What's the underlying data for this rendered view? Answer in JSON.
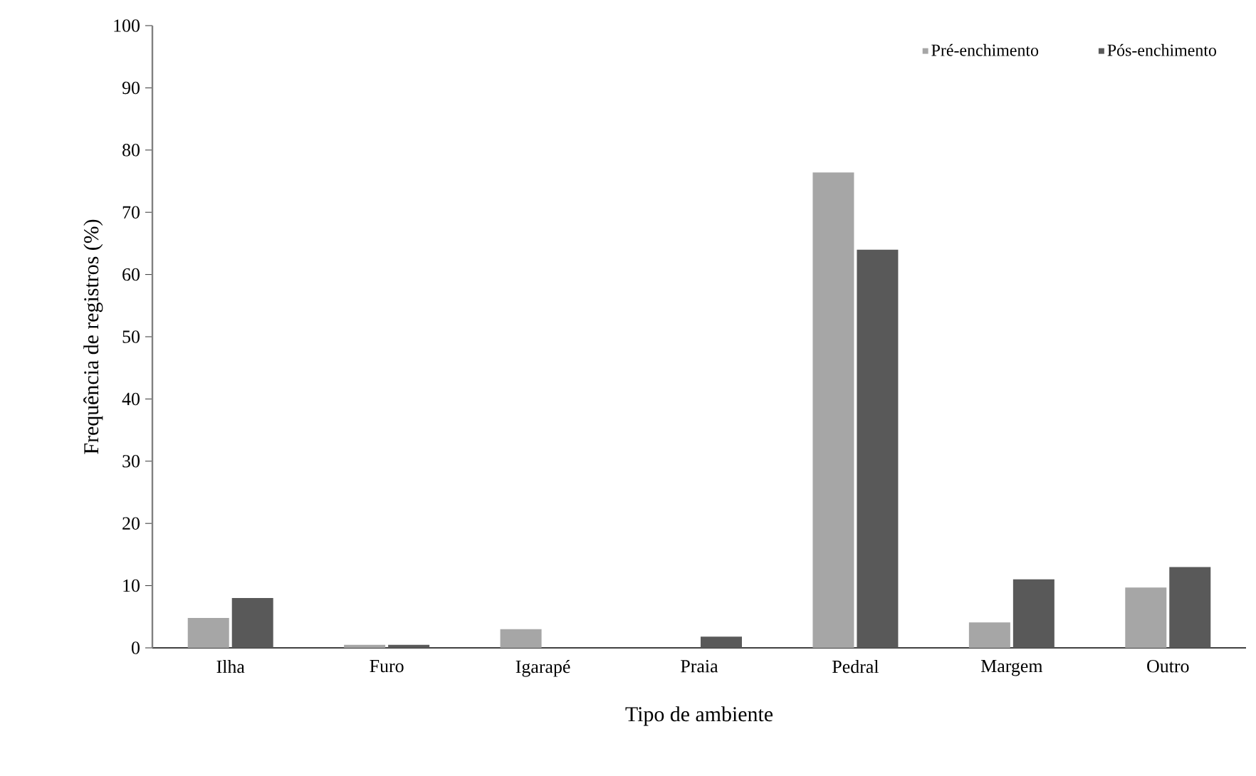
{
  "chart_data": {
    "type": "bar",
    "xlabel": "Tipo de ambiente",
    "ylabel": "Frequência de registros (%)",
    "categories": [
      "Ilha",
      "Furo",
      "Igarapé",
      "Praia",
      "Pedral",
      "Margem",
      "Outro"
    ],
    "series": [
      {
        "name": "Pré-enchimento",
        "color": "#a6a6a6",
        "values": [
          4.8,
          0.5,
          3.0,
          0,
          76.4,
          4.1,
          9.7
        ]
      },
      {
        "name": "Pós-enchimento",
        "color": "#595959",
        "values": [
          8.0,
          0.5,
          0,
          1.8,
          64.0,
          11.0,
          13.0
        ]
      }
    ],
    "ylim": [
      0,
      100
    ],
    "yticks": [
      0,
      10,
      20,
      30,
      40,
      50,
      60,
      70,
      80,
      90,
      100
    ],
    "grid": false,
    "legend": "top right"
  }
}
